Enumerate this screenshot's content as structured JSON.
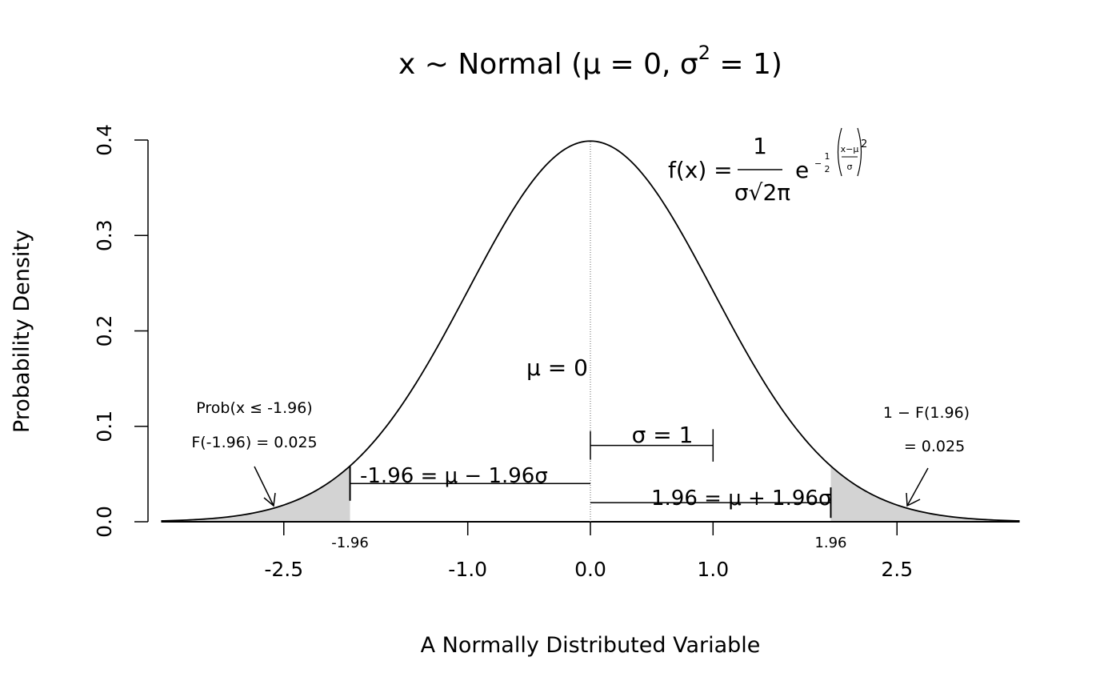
{
  "chart_data": {
    "type": "line",
    "title": "x ~ Normal (μ = 0, σ² = 1)",
    "title_parts": {
      "prefix": "x ~ Normal (",
      "mu": "μ = 0, ",
      "sigma": "σ",
      "sup": "2",
      "suffix": " = 1)"
    },
    "xlabel": "A Normally Distributed Variable",
    "ylabel": "Probability Density",
    "xlim": [
      -3.5,
      3.5
    ],
    "ylim": [
      0,
      0.4
    ],
    "x_ticks": [
      -2.5,
      -1.0,
      0.0,
      1.0,
      2.5
    ],
    "x_tick_labels": [
      "-2.5",
      "-1.0",
      "0.0",
      "1.0",
      "2.5"
    ],
    "x_ticks_small": [
      -1.96,
      1.96
    ],
    "x_ticks_small_labels": [
      "-1.96",
      "1.96"
    ],
    "y_ticks": [
      0.0,
      0.1,
      0.2,
      0.3,
      0.4
    ],
    "y_tick_labels": [
      "0.0",
      "0.1",
      "0.2",
      "0.3",
      "0.4"
    ],
    "curve": {
      "mean": 0,
      "sd": 1
    },
    "shaded_tails": {
      "left_upper": -1.96,
      "right_lower": 1.96,
      "color": "#d3d3d3"
    },
    "annotations": {
      "mu_label": "μ = 0",
      "sigma_label": "σ = 1",
      "left_bracket_label": "-1.96 = μ − 1.96σ",
      "right_bracket_label": "1.96 = μ + 1.96σ",
      "left_tail_line1": "Prob(x ≤ -1.96)",
      "left_tail_line2": "F(-1.96) = 0.025",
      "right_tail_line1": "1 − F(1.96)",
      "right_tail_line2": "= 0.025"
    },
    "formula": {
      "lhs": "f(x) = ",
      "numerator": "1",
      "denominator": "σ√2π",
      "base": "e",
      "exp_coef_num": "1",
      "exp_coef_den": "2",
      "exp_frac_num": "x−μ",
      "exp_frac_den": "σ",
      "exp_power": "2"
    }
  }
}
